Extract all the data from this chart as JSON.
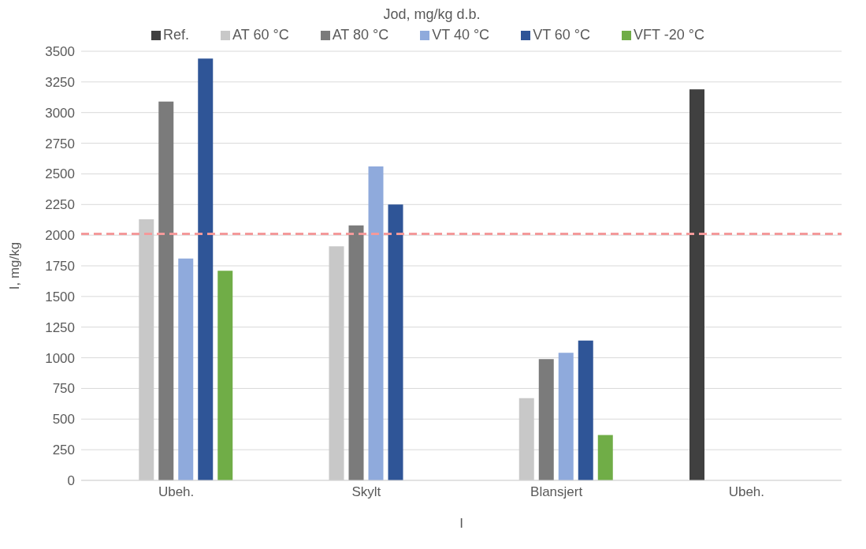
{
  "chart_data": {
    "type": "bar",
    "title": "Jod, mg/kg d.b.",
    "xlabel": "I",
    "ylabel": "I, mg/kg",
    "categories": [
      "Ubeh.",
      "Skylt",
      "Blansjert",
      "Ubeh."
    ],
    "series": [
      {
        "name": "Ref.",
        "color": "#404040",
        "values": [
          null,
          null,
          null,
          3190
        ]
      },
      {
        "name": "AT 60 °C",
        "color": "#c8c8c8",
        "values": [
          2130,
          1910,
          670,
          null
        ]
      },
      {
        "name": "AT 80 °C",
        "color": "#7b7b7b",
        "values": [
          3090,
          2080,
          990,
          null
        ]
      },
      {
        "name": "VT 40 °C",
        "color": "#8faadc",
        "values": [
          1810,
          2560,
          1040,
          null
        ]
      },
      {
        "name": "VT 60 °C",
        "color": "#2f5597",
        "values": [
          3440,
          2250,
          1140,
          null
        ]
      },
      {
        "name": "VFT -20 °C",
        "color": "#70ad47",
        "values": [
          1710,
          null,
          370,
          null
        ]
      }
    ],
    "ylim": [
      0,
      3500
    ],
    "yticks": [
      0,
      250,
      500,
      750,
      1000,
      1250,
      1500,
      1750,
      2000,
      2250,
      2500,
      2750,
      3000,
      3250,
      3500
    ],
    "grid": "y",
    "legend": "top",
    "ref_lines": [
      {
        "axis": "y",
        "value": 2010,
        "color": "#f4999a",
        "line_style": "dashed"
      }
    ]
  }
}
